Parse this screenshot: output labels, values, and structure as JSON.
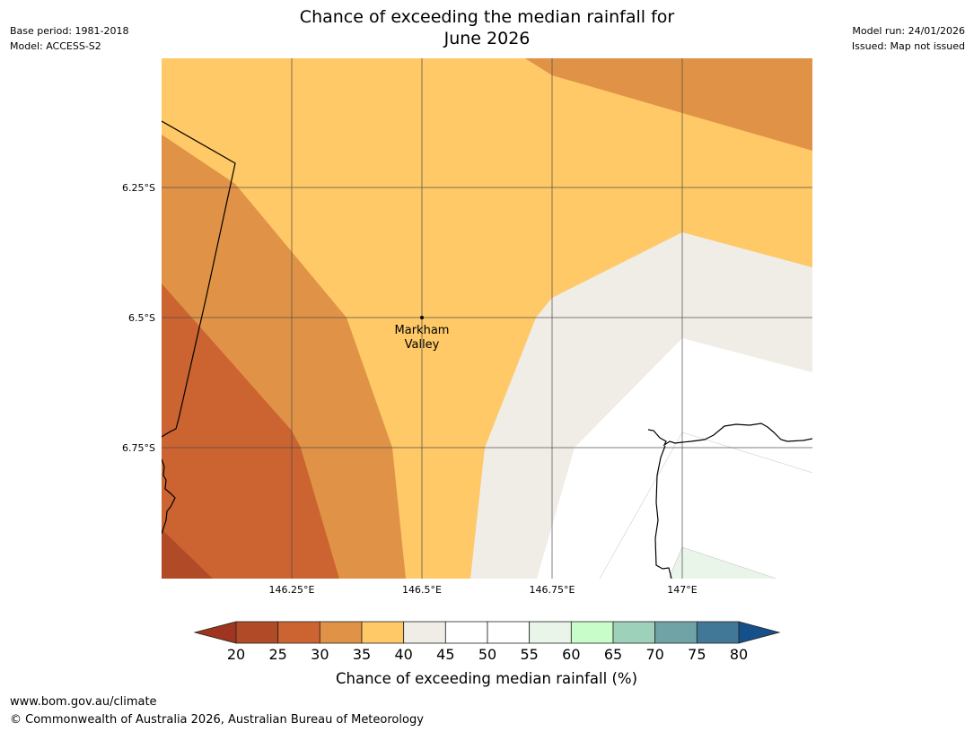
{
  "header": {
    "title_line1": "Chance of exceeding the median rainfall for",
    "title_line2": "June 2026",
    "base_period": "Base period: 1981-2018",
    "model": "Model: ACCESS-S2",
    "model_run": "Model run: 24/01/2026",
    "issued": "Issued: Map not issued"
  },
  "map": {
    "longitude_ticks": [
      "146.25°E",
      "146.5°E",
      "146.75°E",
      "147°E"
    ],
    "latitude_ticks": [
      "6.25°S",
      "6.5°S",
      "6.75°S"
    ],
    "place": {
      "name_line1": "Markham",
      "name_line2": "Valley",
      "lon": 146.5,
      "lat": -6.5
    },
    "regions": [
      {
        "name": "20-25%",
        "bin": [
          20,
          25
        ],
        "color": "#b04a27"
      },
      {
        "name": "25-30%",
        "bin": [
          25,
          30
        ],
        "color": "#cb6431"
      },
      {
        "name": "30-35%",
        "bin": [
          30,
          35
        ],
        "color": "#e09347"
      },
      {
        "name": "35-40%",
        "bin": [
          35,
          40
        ],
        "color": "#fec966"
      },
      {
        "name": "40-45%",
        "bin": [
          40,
          45
        ],
        "color": "#f0ece6"
      },
      {
        "name": "45-55%",
        "bin": [
          45,
          55
        ],
        "color": "#ffffff"
      },
      {
        "name": "55-60%",
        "bin": [
          55,
          60
        ],
        "color": "#e8f5e8"
      }
    ]
  },
  "colorbar": {
    "title": "Chance of exceeding median rainfall (%)",
    "ticks": [
      "20",
      "25",
      "30",
      "35",
      "40",
      "45",
      "50",
      "55",
      "60",
      "65",
      "70",
      "75",
      "80"
    ],
    "under_color": "#a0351f",
    "over_color": "#15508a",
    "segments": [
      {
        "from": 20,
        "to": 25,
        "color": "#b04a27"
      },
      {
        "from": 25,
        "to": 30,
        "color": "#cb6431"
      },
      {
        "from": 30,
        "to": 35,
        "color": "#e09347"
      },
      {
        "from": 35,
        "to": 40,
        "color": "#fec966"
      },
      {
        "from": 40,
        "to": 45,
        "color": "#f0ece6"
      },
      {
        "from": 45,
        "to": 50,
        "color": "#ffffff"
      },
      {
        "from": 50,
        "to": 55,
        "color": "#ffffff"
      },
      {
        "from": 55,
        "to": 60,
        "color": "#e8f5e8"
      },
      {
        "from": 60,
        "to": 65,
        "color": "#c8fcc8"
      },
      {
        "from": 65,
        "to": 70,
        "color": "#9dd1b9"
      },
      {
        "from": 70,
        "to": 75,
        "color": "#6fa3a6"
      },
      {
        "from": 75,
        "to": 80,
        "color": "#417897"
      }
    ]
  },
  "footer": {
    "url": "www.bom.gov.au/climate",
    "copyright": "© Commonwealth of Australia 2026, Australian Bureau of Meteorology"
  }
}
